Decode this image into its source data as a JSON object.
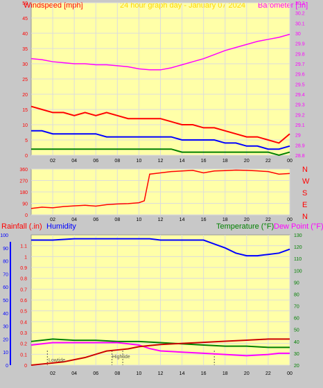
{
  "top": {
    "left_label": "Windspeed [mph]",
    "center_label": "24 hour graph day - January 07 2024",
    "right_label": "Barometer [.in]",
    "left_ticks": [
      "0",
      "5",
      "10",
      "15",
      "20",
      "25",
      "30",
      "35",
      "40",
      "45",
      "50"
    ],
    "right_ticks": [
      "28.8",
      "28.9",
      "29",
      "29.1",
      "29.2",
      "29.3",
      "29.4",
      "29.5",
      "29.6",
      "29.7",
      "29.8",
      "29.9",
      "30",
      "30.1",
      "30.2",
      "30.3"
    ]
  },
  "direction": {
    "left_ticks": [
      "0",
      "90",
      "180",
      "270",
      "360"
    ],
    "compass": [
      "N",
      "W",
      "S",
      "E",
      "N"
    ]
  },
  "bottom": {
    "rain_label": "Rainfall (.in)",
    "humidity_label": "Humidity",
    "temp_label": "Temperature (°F)",
    "dew_label": "Dew Point (°F)",
    "rain_ticks": [
      "0",
      "0.1",
      "0.2",
      "0.3",
      "0.4",
      "0.5",
      "0.6",
      "0.7",
      "0.8",
      "0.9",
      "1",
      "1.1"
    ],
    "humidity_ticks": [
      "0",
      "10",
      "20",
      "30",
      "40",
      "50",
      "60",
      "70",
      "80",
      "90",
      "100"
    ],
    "temp_ticks": [
      "20",
      "30",
      "40",
      "50",
      "60",
      "70",
      "80",
      "90",
      "100",
      "110",
      "120",
      "130"
    ],
    "lowtide_label": "Lowtide",
    "hightide_label": "Hightide"
  },
  "x_ticks": [
    "02",
    "04",
    "06",
    "08",
    "10",
    "12",
    "14",
    "16",
    "18",
    "20",
    "22",
    "00"
  ],
  "colors": {
    "panel_bg": "#ffffa8",
    "wind_gust": "#ff0000",
    "wind_avg": "#0000ff",
    "wind_low": "#008000",
    "barometer": "#ff00ff",
    "direction": "#ff0000",
    "humidity": "#0000ff",
    "temperature": "#008000",
    "dew_point": "#ff00ff",
    "rainfall": "#cc0000",
    "axis_left": "#ff0000",
    "axis_right": "#ff00ff",
    "title": "#ffd700",
    "grid": "#dcdcdc"
  },
  "chart_data": [
    {
      "type": "line",
      "x_unit": "hour",
      "xlim": [
        0,
        24
      ],
      "series": [
        {
          "axis": "left",
          "x": [
            0,
            1,
            2,
            3,
            4,
            5,
            6,
            7,
            8,
            9,
            10,
            11,
            12,
            13,
            14,
            15,
            16,
            17,
            18,
            19,
            20,
            21,
            22,
            23,
            24
          ],
          "values": [
            16,
            15,
            14,
            14,
            13,
            14,
            13,
            14,
            13,
            12,
            12,
            12,
            12,
            11,
            10,
            10,
            9,
            9,
            8,
            7,
            6,
            6,
            5,
            4,
            7
          ]
        },
        {
          "axis": "left",
          "x": [
            0,
            1,
            2,
            3,
            4,
            5,
            6,
            7,
            8,
            9,
            10,
            11,
            12,
            13,
            14,
            15,
            16,
            17,
            18,
            19,
            20,
            21,
            22,
            23,
            24
          ],
          "values": [
            8,
            8,
            7,
            7,
            7,
            7,
            7,
            6,
            6,
            6,
            6,
            6,
            6,
            6,
            5,
            5,
            5,
            5,
            4,
            4,
            3,
            3,
            2,
            2,
            3
          ]
        },
        {
          "axis": "left",
          "x": [
            0,
            1,
            2,
            3,
            4,
            5,
            6,
            7,
            8,
            9,
            10,
            11,
            12,
            13,
            14,
            15,
            16,
            17,
            18,
            19,
            20,
            21,
            22,
            23,
            24
          ],
          "values": [
            2,
            2,
            2,
            2,
            2,
            2,
            2,
            2,
            2,
            2,
            2,
            2,
            2,
            2,
            1,
            1,
            1,
            1,
            1,
            1,
            1,
            1,
            1,
            0,
            1
          ]
        },
        {
          "axis": "right",
          "x": [
            0,
            1,
            2,
            3,
            4,
            5,
            6,
            7,
            8,
            9,
            10,
            11,
            12,
            13,
            14,
            15,
            16,
            17,
            18,
            19,
            20,
            21,
            22,
            23,
            24
          ],
          "values": [
            29.75,
            29.74,
            29.72,
            29.71,
            29.7,
            29.7,
            29.69,
            29.69,
            29.68,
            29.67,
            29.65,
            29.64,
            29.64,
            29.66,
            29.69,
            29.72,
            29.75,
            29.79,
            29.83,
            29.86,
            29.89,
            29.92,
            29.94,
            29.96,
            29.99
          ]
        }
      ],
      "ylim": [
        0,
        50
      ],
      "y2lim": [
        28.8,
        30.3
      ]
    },
    {
      "type": "line",
      "x_unit": "hour",
      "xlim": [
        0,
        24
      ],
      "series": [
        {
          "x": [
            0,
            1,
            2,
            3,
            4,
            5,
            6,
            7,
            8,
            9,
            10,
            10.5,
            11,
            12,
            13,
            14,
            15,
            16,
            17,
            18,
            19,
            20,
            21,
            22,
            23,
            24
          ],
          "values": [
            50,
            60,
            55,
            65,
            70,
            75,
            68,
            80,
            85,
            88,
            95,
            110,
            320,
            330,
            340,
            345,
            350,
            330,
            345,
            348,
            352,
            350,
            346,
            340,
            320,
            325
          ]
        }
      ],
      "ylim": [
        0,
        360
      ]
    },
    {
      "type": "line",
      "x_unit": "hour",
      "xlim": [
        0,
        24
      ],
      "series": [
        {
          "axis": "humidity",
          "x": [
            0,
            2,
            4,
            6,
            8,
            10,
            11,
            12,
            14,
            16,
            17,
            18,
            19,
            20,
            21,
            22,
            23,
            24
          ],
          "values": [
            96,
            96,
            97,
            97,
            97,
            97,
            97,
            96,
            96,
            96,
            93,
            90,
            86,
            84,
            84,
            85,
            86,
            89
          ]
        },
        {
          "axis": "temperature",
          "x": [
            0,
            2,
            4,
            6,
            8,
            10,
            12,
            14,
            16,
            18,
            20,
            22,
            24
          ],
          "values": [
            40,
            42,
            41,
            41,
            40,
            40,
            39,
            38,
            37,
            36,
            36,
            35,
            35
          ]
        },
        {
          "axis": "dew_point",
          "x": [
            0,
            2,
            4,
            6,
            8,
            10,
            11,
            12,
            14,
            16,
            18,
            20,
            22,
            23,
            24
          ],
          "values": [
            37,
            39,
            39,
            39,
            39,
            37,
            34,
            32,
            31,
            30,
            29,
            28,
            29,
            30,
            30
          ]
        },
        {
          "axis": "rain",
          "x": [
            0,
            1,
            2,
            3,
            4,
            5,
            6,
            7,
            8,
            9,
            10,
            11,
            12,
            14,
            16,
            18,
            20,
            22,
            24
          ],
          "values": [
            0,
            0.01,
            0.02,
            0.03,
            0.05,
            0.07,
            0.1,
            0.13,
            0.14,
            0.15,
            0.17,
            0.18,
            0.19,
            0.2,
            0.21,
            0.22,
            0.23,
            0.24,
            0.24
          ]
        }
      ],
      "rain_ylim": [
        0,
        1.2
      ],
      "humidity_ylim": [
        0,
        100
      ],
      "temp_ylim": [
        20,
        130
      ],
      "tides": [
        {
          "label": "Lowtide",
          "x": 1.5
        },
        {
          "label": "Hightide",
          "x": 7.5
        },
        {
          "label": "",
          "x": 8.5
        },
        {
          "label": "",
          "x": 17
        }
      ]
    }
  ]
}
